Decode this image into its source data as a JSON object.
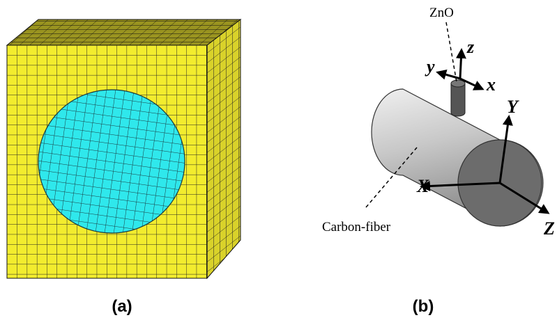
{
  "panels": [
    {
      "label": "(a)"
    },
    {
      "label": "(b)",
      "labels": {
        "znO": "ZnO",
        "carbon_fiber": "Carbon-fiber"
      },
      "local_axes": {
        "z": "z",
        "y": "y",
        "x": "x"
      },
      "global_axes": {
        "y": "Y",
        "x": "X",
        "z": "Z"
      }
    }
  ]
}
